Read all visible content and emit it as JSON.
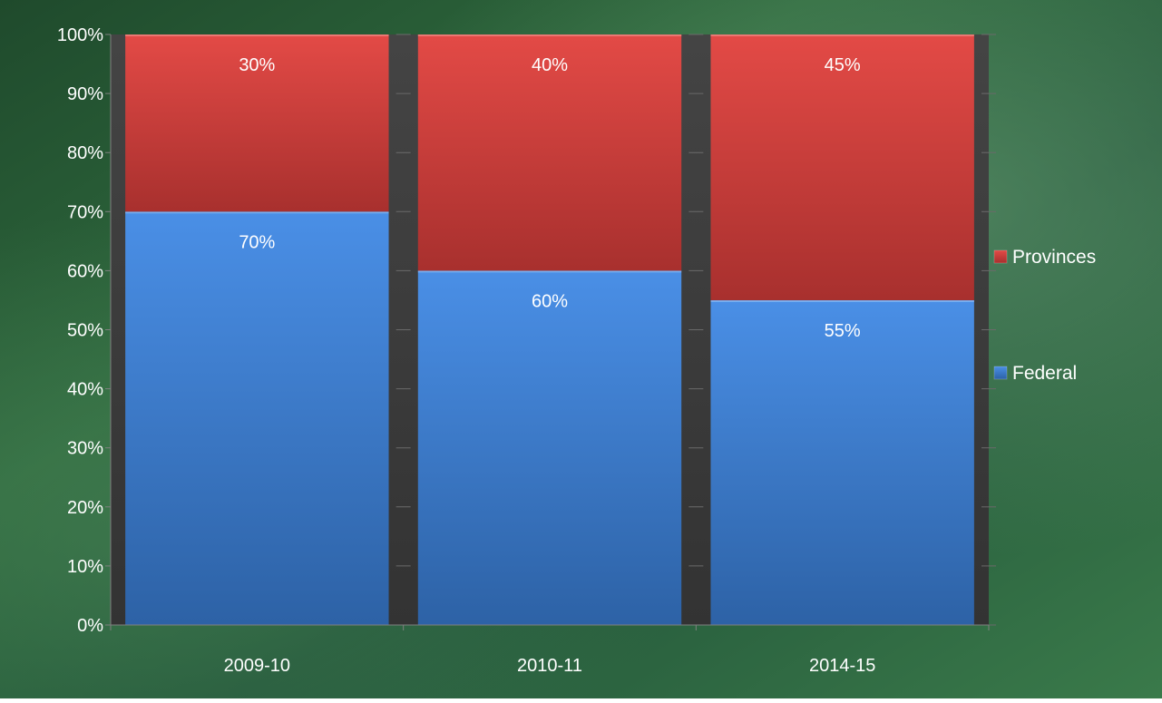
{
  "chart_data": {
    "type": "bar",
    "stacked": true,
    "percent_stacked": true,
    "categories": [
      "2009-10",
      "2010-11",
      "2014-15"
    ],
    "series": [
      {
        "name": "Federal",
        "values": [
          70,
          60,
          55
        ],
        "data_labels": [
          "70%",
          "60%",
          "55%"
        ],
        "color": "#3f7fd6"
      },
      {
        "name": "Provinces",
        "values": [
          30,
          40,
          45
        ],
        "data_labels": [
          "30%",
          "40%",
          "45%"
        ],
        "color": "#d8403d"
      }
    ],
    "title": "",
    "xlabel": "",
    "ylabel": "",
    "ylim": [
      0,
      100
    ],
    "yticks": [
      "0%",
      "10%",
      "20%",
      "30%",
      "40%",
      "50%",
      "60%",
      "70%",
      "80%",
      "90%",
      "100%"
    ],
    "grid": false,
    "legend_position": "right",
    "plot_background": "#3b3b3b",
    "page_background": "green-marble"
  }
}
